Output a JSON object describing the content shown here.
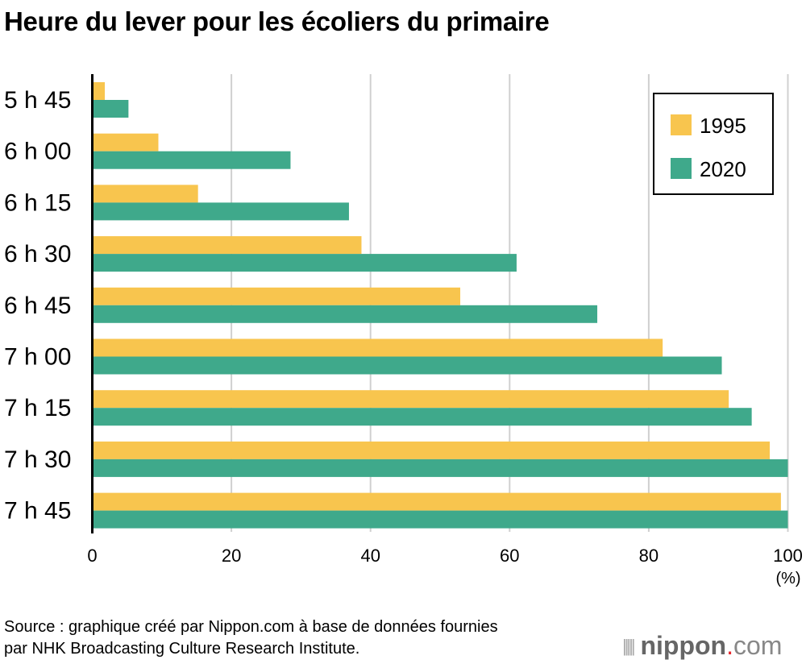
{
  "chart_data": {
    "type": "bar",
    "orientation": "horizontal",
    "title": "Heure du lever pour les écoliers du primaire",
    "categories": [
      "5 h 45",
      "6 h 00",
      "6 h 15",
      "6 h 30",
      "6 h 45",
      "7 h 00",
      "7 h 15",
      "7 h 30",
      "7 h 45"
    ],
    "series": [
      {
        "name": "1995",
        "color": "#F8C54E",
        "values": [
          1.8,
          9.5,
          15.2,
          38.7,
          52.9,
          82.0,
          91.5,
          97.4,
          99.0
        ]
      },
      {
        "name": "2020",
        "color": "#3FA98B",
        "values": [
          5.2,
          28.5,
          36.9,
          61.0,
          72.6,
          90.5,
          94.8,
          100,
          100
        ]
      }
    ],
    "xlim": [
      0,
      100
    ],
    "xticks": [
      "0",
      "20",
      "40",
      "60",
      "80",
      "100"
    ],
    "xunit": "(%)",
    "grid": true,
    "legend": "top-right"
  },
  "source": [
    "Source : graphique créé par Nippon.com à base de données fournies",
    "par NHK Broadcasting Culture Research Institute."
  ],
  "logo": {
    "text": "nippon",
    "dot": ".",
    "suffix": "com",
    "dot_color": "#E8262C"
  }
}
